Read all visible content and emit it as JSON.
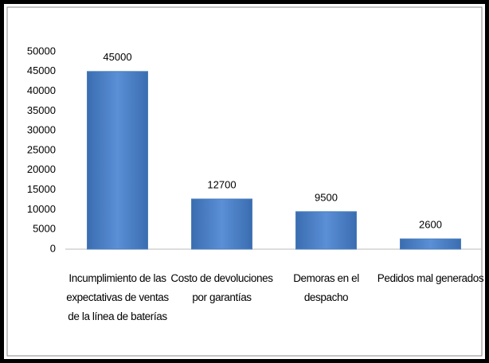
{
  "chart_data": {
    "type": "bar",
    "categories": [
      "Incumplimiento de las expectativas de ventas de la línea de baterías",
      "Costo de devoluciones por garantías",
      "Demoras en el despacho",
      "Pedidos mal generados"
    ],
    "values": [
      45000,
      12700,
      9500,
      2600
    ],
    "color": "#4a7ebb",
    "ylim": [
      0,
      50000
    ],
    "yticks": [
      0,
      5000,
      10000,
      15000,
      20000,
      25000,
      30000,
      35000,
      40000,
      45000,
      50000
    ],
    "grid": false
  }
}
